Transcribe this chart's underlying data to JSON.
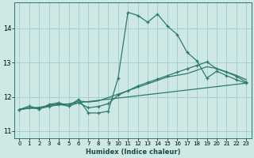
{
  "title": "",
  "xlabel": "Humidex (Indice chaleur)",
  "ylabel": "",
  "bg_color": "#cde8e5",
  "grid_color": "#9eccc8",
  "line_color": "#2d7a6e",
  "xlim": [
    -0.5,
    23.5
  ],
  "ylim": [
    10.8,
    14.75
  ],
  "xticks": [
    0,
    1,
    2,
    3,
    4,
    5,
    6,
    7,
    8,
    9,
    10,
    11,
    12,
    13,
    14,
    15,
    16,
    17,
    18,
    19,
    20,
    21,
    22,
    23
  ],
  "yticks": [
    11,
    12,
    13,
    14
  ],
  "line1_x": [
    0,
    1,
    2,
    3,
    4,
    5,
    6,
    7,
    8,
    9,
    10,
    11,
    12,
    13,
    14,
    15,
    16,
    17,
    18,
    19,
    20,
    21,
    22,
    23
  ],
  "line1_y": [
    11.63,
    11.73,
    11.65,
    11.78,
    11.83,
    11.73,
    11.93,
    11.53,
    11.53,
    11.58,
    12.55,
    14.47,
    14.38,
    14.18,
    14.42,
    14.07,
    13.82,
    13.3,
    13.05,
    12.55,
    12.75,
    12.62,
    12.5,
    12.4
  ],
  "line2_x": [
    0,
    1,
    2,
    3,
    4,
    5,
    6,
    7,
    8,
    9,
    10,
    11,
    12,
    13,
    14,
    15,
    16,
    17,
    18,
    19,
    20,
    21,
    22,
    23
  ],
  "line2_y": [
    11.63,
    11.68,
    11.65,
    11.72,
    11.78,
    11.73,
    11.83,
    11.68,
    11.72,
    11.8,
    12.05,
    12.18,
    12.32,
    12.42,
    12.52,
    12.62,
    12.72,
    12.82,
    12.92,
    13.02,
    12.82,
    12.72,
    12.6,
    12.43
  ],
  "line3_x": [
    0,
    1,
    2,
    3,
    4,
    5,
    6,
    7,
    8,
    9,
    10,
    11,
    12,
    13,
    14,
    15,
    16,
    17,
    18,
    19,
    20,
    21,
    22,
    23
  ],
  "line3_y": [
    11.63,
    11.68,
    11.68,
    11.75,
    11.8,
    11.78,
    11.88,
    11.85,
    11.88,
    11.98,
    12.08,
    12.18,
    12.28,
    12.38,
    12.48,
    12.58,
    12.63,
    12.68,
    12.78,
    12.88,
    12.83,
    12.73,
    12.63,
    12.5
  ],
  "line4_x": [
    0,
    23
  ],
  "line4_y": [
    11.63,
    12.4
  ]
}
